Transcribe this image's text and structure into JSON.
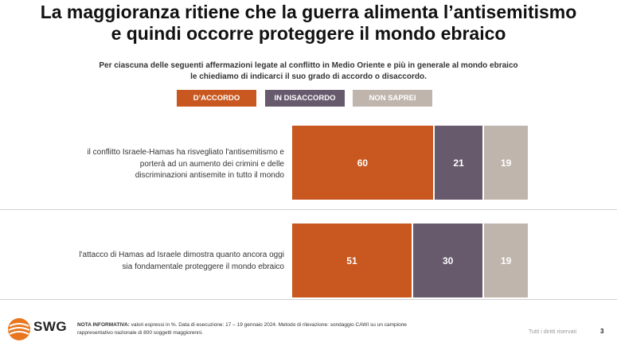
{
  "title_line1": "La maggioranza ritiene che la guerra alimenta l’antisemitismo",
  "title_line2": "e quindi occorre proteggere il mondo ebraico",
  "subtitle_line1": "Per ciascuna delle seguenti affermazioni legate al conflitto in Medio Oriente e più in generale al mondo ebraico",
  "subtitle_line2": "le chiediamo di indicarci il suo grado di accordo o disaccordo.",
  "legend": {
    "agree": "D’ACCORDO",
    "disagree": "IN DISACCORDO",
    "dontknow": "NON SAPREI"
  },
  "colors": {
    "agree": "#c8581f",
    "disagree": "#675a6d",
    "dontknow": "#c0b5ad"
  },
  "chart_data": {
    "type": "bar",
    "orientation": "horizontal-stacked",
    "unit": "%",
    "categories": [
      "il conflitto Israele-Hamas ha risvegliato l'antisemitismo e porterà ad un aumento dei crimini e delle discriminazioni antisemite in tutto il mondo",
      "l'attacco di Hamas ad Israele dimostra quanto ancora oggi sia fondamentale proteggere il mondo ebraico"
    ],
    "series": [
      {
        "name": "D’ACCORDO",
        "values": [
          60,
          51
        ]
      },
      {
        "name": "IN DISACCORDO",
        "values": [
          21,
          30
        ]
      },
      {
        "name": "NON SAPREI",
        "values": [
          19,
          19
        ]
      }
    ],
    "xlim": [
      0,
      100
    ]
  },
  "statements": [
    {
      "line1": "il conflitto Israele-Hamas ha risvegliato l'antisemitismo e",
      "line2": "porterà ad un aumento dei crimini e delle",
      "line3": "discriminazioni antisemite in tutto il mondo"
    },
    {
      "line1": "l'attacco di Hamas ad Israele dimostra quanto ancora oggi",
      "line2": "sia fondamentale proteggere il mondo ebraico"
    }
  ],
  "footer": {
    "brand": "SWG",
    "note_label": "NOTA INFORMATIVA:",
    "note_line1": " valori espressi in %. Data di esecuzione: 17 – 19 gennaio 2024. Metodo di rilevazione: sondaggio CAWI su un campione",
    "note_line2": "rappresentativo nazionale di 800 soggetti maggiorenni.",
    "rights": "Tutti i diritti riservati",
    "page": "3"
  }
}
